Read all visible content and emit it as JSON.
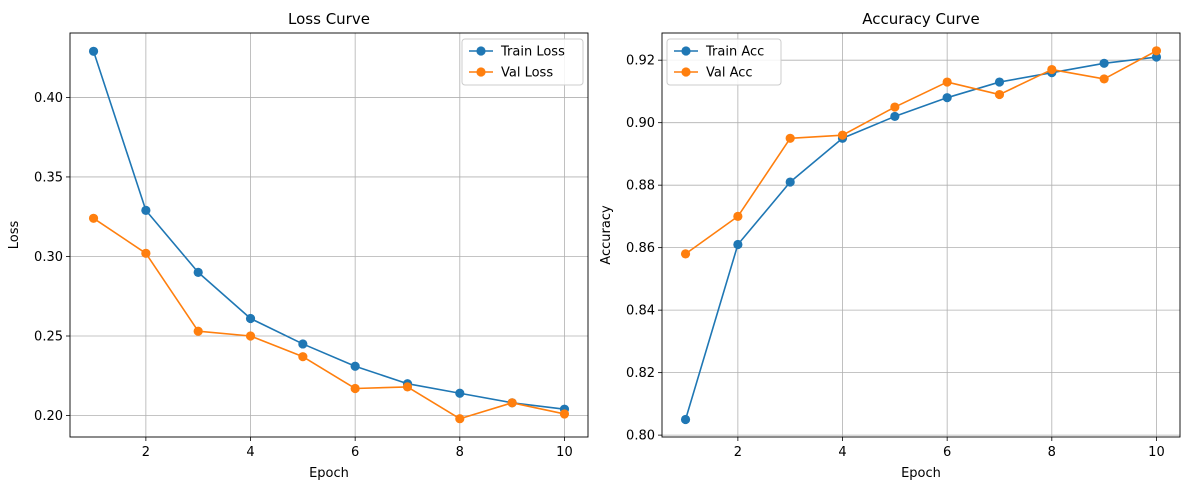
{
  "colors": {
    "train": "#1f77b4",
    "val": "#ff7f0e",
    "grid": "#b0b0b0",
    "frame": "#000000"
  },
  "chart_data": [
    {
      "type": "line",
      "title": "Loss Curve",
      "xlabel": "Epoch",
      "ylabel": "Loss",
      "x": [
        1,
        2,
        3,
        4,
        5,
        6,
        7,
        8,
        9,
        10
      ],
      "xlim": [
        0.55,
        10.45
      ],
      "ylim": [
        0.1865,
        0.4405
      ],
      "xticks": [
        2,
        4,
        6,
        8,
        10
      ],
      "xtick_labels": [
        "2",
        "4",
        "6",
        "8",
        "10"
      ],
      "yticks": [
        0.2,
        0.25,
        0.3,
        0.35,
        0.4
      ],
      "ytick_labels": [
        "0.20",
        "0.25",
        "0.30",
        "0.35",
        "0.40"
      ],
      "grid": true,
      "legend": "top-right",
      "series": [
        {
          "name": "Train Loss",
          "color": "#1f77b4",
          "values": [
            0.429,
            0.329,
            0.29,
            0.261,
            0.245,
            0.231,
            0.22,
            0.214,
            0.208,
            0.204
          ]
        },
        {
          "name": "Val Loss",
          "color": "#ff7f0e",
          "values": [
            0.324,
            0.302,
            0.253,
            0.25,
            0.237,
            0.217,
            0.218,
            0.198,
            0.208,
            0.201
          ]
        }
      ]
    },
    {
      "type": "line",
      "title": "Accuracy Curve",
      "xlabel": "Epoch",
      "ylabel": "Accuracy",
      "x": [
        1,
        2,
        3,
        4,
        5,
        6,
        7,
        8,
        9,
        10
      ],
      "xlim": [
        0.55,
        10.45
      ],
      "ylim": [
        0.7994,
        0.9287
      ],
      "xticks": [
        2,
        4,
        6,
        8,
        10
      ],
      "xtick_labels": [
        "2",
        "4",
        "6",
        "8",
        "10"
      ],
      "yticks": [
        0.8,
        0.82,
        0.84,
        0.86,
        0.88,
        0.9,
        0.92
      ],
      "ytick_labels": [
        "0.80",
        "0.82",
        "0.84",
        "0.86",
        "0.88",
        "0.90",
        "0.92"
      ],
      "grid": true,
      "legend": "top-left",
      "series": [
        {
          "name": "Train Acc",
          "color": "#1f77b4",
          "values": [
            0.805,
            0.861,
            0.881,
            0.895,
            0.902,
            0.908,
            0.913,
            0.916,
            0.919,
            0.921
          ]
        },
        {
          "name": "Val Acc",
          "color": "#ff7f0e",
          "values": [
            0.858,
            0.87,
            0.895,
            0.896,
            0.905,
            0.913,
            0.909,
            0.917,
            0.914,
            0.923
          ]
        }
      ]
    }
  ]
}
